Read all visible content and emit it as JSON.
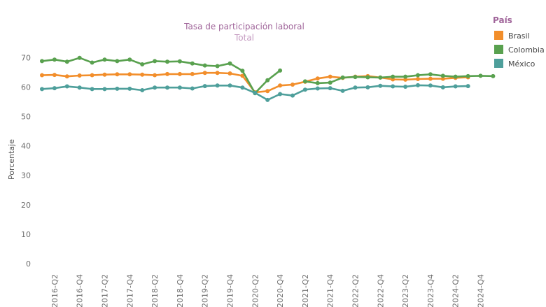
{
  "chart_data": {
    "type": "line",
    "title": "Tasa de participación laboral",
    "subtitle": "Total",
    "ylabel": "Porcentaje",
    "xlabel": "",
    "ylim": [
      0,
      75
    ],
    "yticks": [
      0,
      10,
      20,
      30,
      40,
      50,
      60,
      70
    ],
    "grid": false,
    "legend_title": "País",
    "legend_position": "top-right",
    "x": [
      "2016-Q1",
      "2016-Q2",
      "2016-Q3",
      "2016-Q4",
      "2017-Q1",
      "2017-Q2",
      "2017-Q3",
      "2017-Q4",
      "2018-Q1",
      "2018-Q2",
      "2018-Q3",
      "2018-Q4",
      "2019-Q1",
      "2019-Q2",
      "2019-Q3",
      "2019-Q4",
      "2020-Q1",
      "2020-Q2",
      "2020-Q3",
      "2020-Q4",
      "2021-Q1",
      "2021-Q2",
      "2021-Q3",
      "2021-Q4",
      "2022-Q1",
      "2022-Q2",
      "2022-Q3",
      "2022-Q4",
      "2023-Q1",
      "2023-Q2",
      "2023-Q3",
      "2023-Q4",
      "2024-Q1",
      "2024-Q2",
      "2024-Q3",
      "2024-Q4",
      "2025-Q1"
    ],
    "xtick_labels": [
      "2016-Q2",
      "2016-Q4",
      "2017-Q2",
      "2017-Q4",
      "2018-Q2",
      "2018-Q4",
      "2019-Q2",
      "2019-Q4",
      "2020-Q2",
      "2020-Q4",
      "2021-Q2",
      "2021-Q4",
      "2022-Q2",
      "2022-Q4",
      "2023-Q2",
      "2023-Q4",
      "2024-Q2",
      "2024-Q4"
    ],
    "series": [
      {
        "name": "Brasil",
        "color": "#f28e2b",
        "values": [
          64.0,
          64.1,
          63.6,
          63.9,
          64.0,
          64.2,
          64.3,
          64.3,
          64.2,
          64.0,
          64.4,
          64.4,
          64.4,
          64.8,
          64.8,
          64.6,
          63.8,
          58.2,
          58.6,
          60.5,
          60.8,
          61.8,
          62.9,
          63.5,
          63.1,
          63.5,
          63.7,
          63.2,
          62.6,
          62.5,
          62.7,
          62.8,
          62.8,
          63.1,
          63.3,
          null,
          null
        ]
      },
      {
        "name": "Colombia",
        "color": "#59a14f",
        "values": [
          68.8,
          69.3,
          68.6,
          69.9,
          68.3,
          69.3,
          68.8,
          69.3,
          67.7,
          68.8,
          68.6,
          68.7,
          68.0,
          67.3,
          67.1,
          68.0,
          65.5,
          57.9,
          62.3,
          65.6,
          null,
          61.9,
          61.3,
          61.5,
          63.2,
          63.4,
          63.3,
          63.2,
          63.5,
          63.5,
          64.0,
          64.3,
          63.8,
          63.5,
          63.7,
          63.8,
          63.7
        ]
      },
      {
        "name": "México",
        "color": "#4e9f9b",
        "values": [
          59.3,
          59.6,
          60.2,
          59.8,
          59.3,
          59.3,
          59.4,
          59.4,
          58.9,
          59.8,
          59.8,
          59.8,
          59.5,
          60.3,
          60.5,
          60.5,
          59.8,
          58.0,
          55.6,
          57.6,
          57.1,
          59.1,
          59.5,
          59.6,
          58.7,
          59.8,
          59.9,
          60.4,
          60.2,
          60.1,
          60.6,
          60.5,
          59.9,
          60.2,
          60.3,
          null,
          null
        ]
      }
    ]
  }
}
